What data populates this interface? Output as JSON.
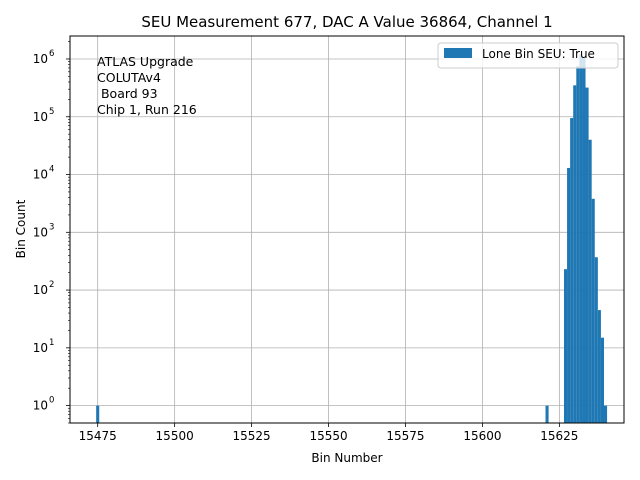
{
  "chart_data": {
    "type": "bar",
    "title": "SEU Measurement 677, DAC A Value 36864, Channel 1",
    "xlabel": "Bin Number",
    "ylabel": "Bin Count",
    "yscale": "log",
    "xlim": [
      15466,
      15646
    ],
    "ylim": [
      0.5,
      2500000
    ],
    "xticks": [
      15475,
      15500,
      15525,
      15550,
      15575,
      15600,
      15625
    ],
    "ytick_exponents": [
      0,
      1,
      2,
      3,
      4,
      5,
      6
    ],
    "grid": true,
    "legend": {
      "placement": "top-right",
      "entries": [
        "Lone Bin SEU: True"
      ]
    },
    "annotation": [
      "ATLAS Upgrade",
      "COLUTAv4",
      " Board 93",
      "Chip 1, Run 216"
    ],
    "bar_width": 1,
    "bar_color": "#1f77b4",
    "series": [
      {
        "name": "Lone Bin SEU: True",
        "x": [
          15475,
          15621,
          15627,
          15628,
          15629,
          15630,
          15631,
          15632,
          15633,
          15634,
          15635,
          15636,
          15637,
          15638,
          15639,
          15640
        ],
        "values": [
          1,
          1,
          230,
          13000,
          95000,
          350000,
          750000,
          1200000,
          1050000,
          320000,
          40000,
          3800,
          370,
          45,
          15,
          1
        ]
      }
    ]
  }
}
